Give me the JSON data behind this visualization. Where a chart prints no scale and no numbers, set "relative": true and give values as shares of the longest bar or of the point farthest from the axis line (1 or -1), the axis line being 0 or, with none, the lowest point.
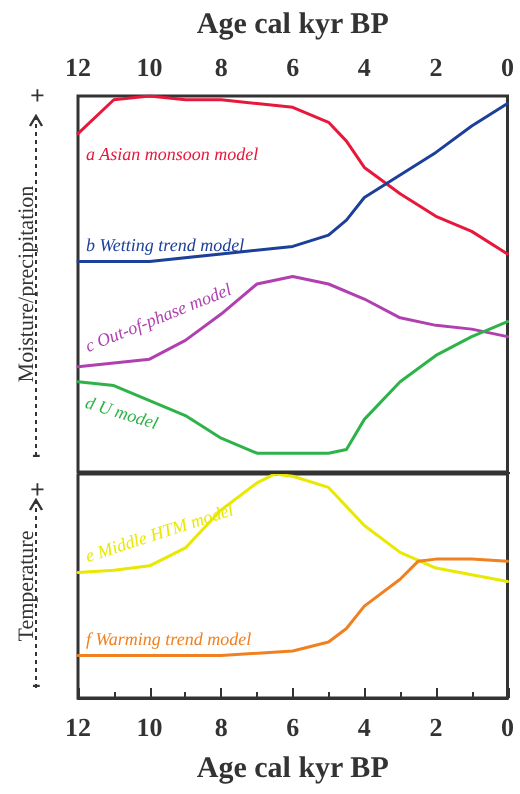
{
  "chart_data": [
    {
      "type": "line",
      "relative": true,
      "xlabel": "Age cal kyr BP",
      "xlim": [
        12,
        0
      ],
      "xticks": [
        12,
        10,
        8,
        6,
        4,
        2,
        0
      ],
      "ylabel": "Moisture/precipitation",
      "annotations": [
        "+",
        "-"
      ],
      "grid": false,
      "legend": false,
      "marker": "none",
      "line_style": "solid",
      "tick_labels": "x",
      "series": [
        {
          "name": "a Asian monsoon model",
          "color": "#e8173c",
          "x": [
            12,
            11,
            10,
            9,
            8,
            7,
            6,
            5,
            4.5,
            4,
            3,
            2,
            1,
            0
          ],
          "values": [
            0.9,
            0.99,
            1.0,
            0.99,
            0.99,
            0.98,
            0.97,
            0.93,
            0.88,
            0.81,
            0.74,
            0.68,
            0.64,
            0.58
          ]
        },
        {
          "name": "b Wetting trend model",
          "color": "#1c3f9a",
          "x": [
            12,
            10,
            8,
            6,
            5,
            4.5,
            4,
            3,
            2,
            1,
            0
          ],
          "values": [
            0.56,
            0.56,
            0.58,
            0.6,
            0.63,
            0.67,
            0.73,
            0.79,
            0.85,
            0.92,
            0.98
          ]
        },
        {
          "name": "c Out-of-phase model",
          "color": "#b040b0",
          "x": [
            12,
            11,
            10,
            9,
            8,
            7,
            6,
            5,
            4,
            3,
            2,
            1,
            0
          ],
          "values": [
            0.28,
            0.29,
            0.3,
            0.35,
            0.42,
            0.5,
            0.52,
            0.5,
            0.46,
            0.41,
            0.39,
            0.38,
            0.36
          ]
        },
        {
          "name": "d U model",
          "color": "#2db34a",
          "x": [
            12,
            11,
            10,
            9,
            8,
            7,
            6,
            5,
            4.5,
            4,
            3,
            2,
            1,
            0
          ],
          "values": [
            0.24,
            0.23,
            0.19,
            0.15,
            0.09,
            0.05,
            0.05,
            0.05,
            0.06,
            0.14,
            0.24,
            0.31,
            0.36,
            0.4
          ]
        }
      ]
    },
    {
      "type": "line",
      "relative": true,
      "xlabel": "Age cal kyr BP",
      "xlim": [
        12,
        0
      ],
      "xticks": [
        12,
        10,
        8,
        6,
        4,
        2,
        0
      ],
      "ylabel": "Temperature",
      "annotations": [
        "+",
        "-"
      ],
      "grid": false,
      "legend": false,
      "marker": "none",
      "line_style": "solid",
      "tick_labels": "x",
      "series": [
        {
          "name": "e Middle HTM model",
          "color": "#e8e800",
          "x": [
            12,
            11,
            10,
            9,
            8,
            7,
            6.5,
            6,
            5,
            4,
            3,
            2,
            1,
            0
          ],
          "values": [
            0.56,
            0.57,
            0.59,
            0.67,
            0.84,
            0.96,
            1.0,
            0.99,
            0.94,
            0.77,
            0.65,
            0.58,
            0.55,
            0.52
          ]
        },
        {
          "name": "f Warming trend model",
          "color": "#f08020",
          "x": [
            12,
            10,
            8,
            6,
            5,
            4.5,
            4,
            3,
            2.5,
            2,
            1,
            0
          ],
          "values": [
            0.19,
            0.19,
            0.19,
            0.21,
            0.25,
            0.31,
            0.41,
            0.53,
            0.61,
            0.62,
            0.62,
            0.61
          ]
        }
      ]
    }
  ]
}
